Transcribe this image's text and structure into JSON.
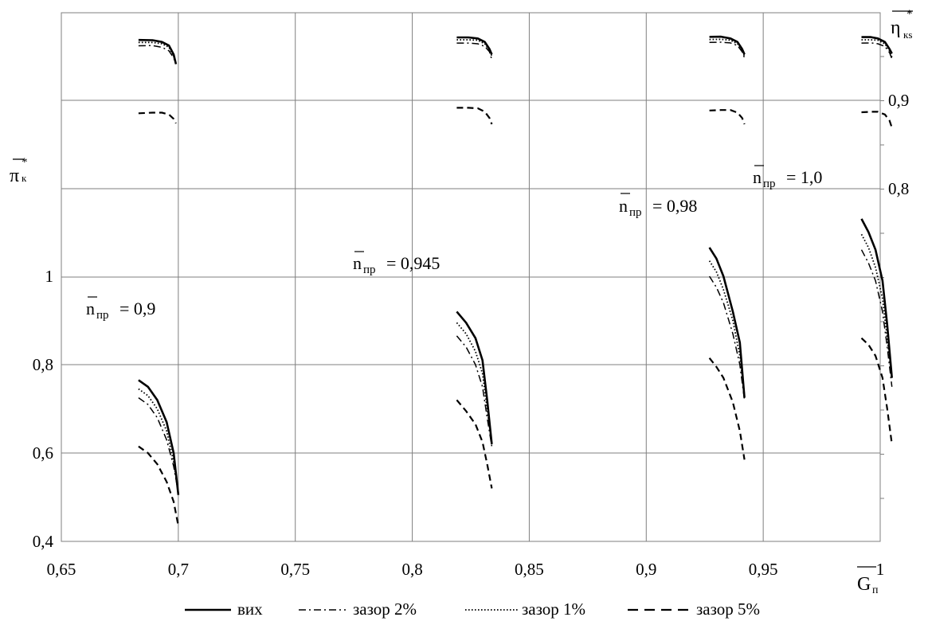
{
  "chart_data": {
    "type": "line",
    "xlabel": "G",
    "xlabel_sub": "п",
    "ylabel": "π",
    "ylabel_sup": "*",
    "ylabel_sub": "к",
    "y2label": "η",
    "y2label_sup": "*",
    "y2label_sub": "кs",
    "xlim": [
      0.65,
      1.0
    ],
    "ylim": [
      0.4,
      1.0
    ],
    "x_ticks": [
      "0,65",
      "0,7",
      "0,75",
      "0,8",
      "0,85",
      "0,9",
      "0,95",
      "1"
    ],
    "y_ticks": [
      "0,4",
      "0,6",
      "0,8",
      "1"
    ],
    "y2_ticks": [
      "0,8",
      "0,9"
    ],
    "grid": true,
    "legend_position": "bottom",
    "annotations": [
      {
        "n": "n",
        "sub": "пр",
        "value": "= 0,9"
      },
      {
        "n": "n",
        "sub": "пр",
        "value": "= 0,945"
      },
      {
        "n": "n",
        "sub": "пр",
        "value": "= 0,98"
      },
      {
        "n": "n",
        "sub": "пр",
        "value": "= 1,0"
      }
    ],
    "series": [
      {
        "name": "вих",
        "style": "solid",
        "pressure": [
          [
            [
              0.683,
              0.765
            ],
            [
              0.687,
              0.75
            ],
            [
              0.691,
              0.72
            ],
            [
              0.695,
              0.67
            ],
            [
              0.698,
              0.6
            ],
            [
              0.7,
              0.505
            ]
          ],
          [
            [
              0.819,
              0.92
            ],
            [
              0.823,
              0.895
            ],
            [
              0.827,
              0.86
            ],
            [
              0.83,
              0.81
            ],
            [
              0.832,
              0.72
            ],
            [
              0.834,
              0.62
            ]
          ],
          [
            [
              0.927,
              1.065
            ],
            [
              0.93,
              1.04
            ],
            [
              0.933,
              1.0
            ],
            [
              0.937,
              0.92
            ],
            [
              0.94,
              0.85
            ],
            [
              0.942,
              0.725
            ]
          ],
          [
            [
              0.992,
              1.13
            ],
            [
              0.995,
              1.1
            ],
            [
              0.998,
              1.06
            ],
            [
              1.001,
              0.99
            ],
            [
              1.003,
              0.89
            ],
            [
              1.005,
              0.77
            ]
          ]
        ],
        "efficiency": [
          [
            [
              0.683,
              0.9683
            ],
            [
              0.689,
              0.968
            ],
            [
              0.693,
              0.966
            ],
            [
              0.696,
              0.962
            ],
            [
              0.698,
              0.952
            ],
            [
              0.699,
              0.941
            ]
          ],
          [
            [
              0.819,
              0.9712
            ],
            [
              0.824,
              0.9712
            ],
            [
              0.828,
              0.97
            ],
            [
              0.831,
              0.966
            ],
            [
              0.833,
              0.958
            ],
            [
              0.834,
              0.952
            ]
          ],
          [
            [
              0.927,
              0.9718
            ],
            [
              0.932,
              0.972
            ],
            [
              0.936,
              0.97
            ],
            [
              0.939,
              0.966
            ],
            [
              0.941,
              0.958
            ],
            [
              0.942,
              0.952
            ]
          ],
          [
            [
              0.992,
              0.9715
            ],
            [
              0.996,
              0.9715
            ],
            [
              0.999,
              0.97
            ],
            [
              1.002,
              0.966
            ],
            [
              1.004,
              0.958
            ],
            [
              1.005,
              0.953
            ]
          ]
        ]
      },
      {
        "name": "зазор 2%",
        "style": "dashdot",
        "pressure": [
          [
            [
              0.683,
              0.725
            ],
            [
              0.687,
              0.71
            ],
            [
              0.691,
              0.68
            ],
            [
              0.695,
              0.63
            ],
            [
              0.698,
              0.57
            ],
            [
              0.7,
              0.51
            ]
          ],
          [
            [
              0.819,
              0.865
            ],
            [
              0.823,
              0.84
            ],
            [
              0.827,
              0.8
            ],
            [
              0.83,
              0.75
            ],
            [
              0.832,
              0.68
            ],
            [
              0.834,
              0.615
            ]
          ],
          [
            [
              0.927,
              1.0
            ],
            [
              0.93,
              0.975
            ],
            [
              0.933,
              0.94
            ],
            [
              0.937,
              0.87
            ],
            [
              0.94,
              0.8
            ],
            [
              0.942,
              0.72
            ]
          ],
          [
            [
              0.992,
              1.06
            ],
            [
              0.995,
              1.03
            ],
            [
              0.998,
              0.99
            ],
            [
              1.001,
              0.92
            ],
            [
              1.003,
              0.84
            ],
            [
              1.005,
              0.75
            ]
          ]
        ],
        "efficiency": [
          [
            [
              0.683,
              0.9617
            ],
            [
              0.689,
              0.962
            ],
            [
              0.693,
              0.96
            ],
            [
              0.696,
              0.956
            ],
            [
              0.698,
              0.948
            ],
            [
              0.699,
              0.941
            ]
          ],
          [
            [
              0.819,
              0.9648
            ],
            [
              0.824,
              0.9648
            ],
            [
              0.828,
              0.964
            ],
            [
              0.831,
              0.961
            ],
            [
              0.833,
              0.955
            ],
            [
              0.834,
              0.946
            ]
          ],
          [
            [
              0.927,
              0.9655
            ],
            [
              0.932,
              0.9658
            ],
            [
              0.936,
              0.965
            ],
            [
              0.939,
              0.962
            ],
            [
              0.941,
              0.955
            ],
            [
              0.942,
              0.948
            ]
          ],
          [
            [
              0.992,
              0.9648
            ],
            [
              0.996,
              0.965
            ],
            [
              0.999,
              0.964
            ],
            [
              1.002,
              0.961
            ],
            [
              1.004,
              0.954
            ],
            [
              1.005,
              0.947
            ]
          ]
        ]
      },
      {
        "name": "зазор 1%",
        "style": "dotted",
        "pressure": [
          [
            [
              0.683,
              0.745
            ],
            [
              0.687,
              0.73
            ],
            [
              0.691,
              0.7
            ],
            [
              0.695,
              0.65
            ],
            [
              0.698,
              0.58
            ],
            [
              0.7,
              0.51
            ]
          ],
          [
            [
              0.819,
              0.895
            ],
            [
              0.823,
              0.87
            ],
            [
              0.827,
              0.83
            ],
            [
              0.83,
              0.78
            ],
            [
              0.832,
              0.7
            ],
            [
              0.834,
              0.62
            ]
          ],
          [
            [
              0.927,
              1.035
            ],
            [
              0.93,
              1.01
            ],
            [
              0.933,
              0.97
            ],
            [
              0.937,
              0.9
            ],
            [
              0.94,
              0.82
            ],
            [
              0.942,
              0.73
            ]
          ],
          [
            [
              0.992,
              1.095
            ],
            [
              0.995,
              1.065
            ],
            [
              0.998,
              1.02
            ],
            [
              1.001,
              0.95
            ],
            [
              1.003,
              0.86
            ],
            [
              1.005,
              0.77
            ]
          ]
        ],
        "efficiency": [
          [
            [
              0.683,
              0.9655
            ],
            [
              0.689,
              0.9655
            ],
            [
              0.693,
              0.964
            ],
            [
              0.696,
              0.96
            ],
            [
              0.698,
              0.95
            ],
            [
              0.699,
              0.941
            ]
          ],
          [
            [
              0.819,
              0.9685
            ],
            [
              0.824,
              0.9685
            ],
            [
              0.828,
              0.968
            ],
            [
              0.831,
              0.964
            ],
            [
              0.833,
              0.957
            ],
            [
              0.834,
              0.95
            ]
          ],
          [
            [
              0.927,
              0.9688
            ],
            [
              0.932,
              0.969
            ],
            [
              0.936,
              0.968
            ],
            [
              0.939,
              0.964
            ],
            [
              0.941,
              0.957
            ],
            [
              0.942,
              0.95
            ]
          ],
          [
            [
              0.992,
              0.9685
            ],
            [
              0.996,
              0.9685
            ],
            [
              0.999,
              0.968
            ],
            [
              1.002,
              0.964
            ],
            [
              1.004,
              0.956
            ],
            [
              1.005,
              0.949
            ]
          ]
        ]
      },
      {
        "name": "зазор 5%",
        "style": "dashed",
        "pressure": [
          [
            [
              0.683,
              0.615
            ],
            [
              0.687,
              0.6
            ],
            [
              0.691,
              0.575
            ],
            [
              0.695,
              0.535
            ],
            [
              0.698,
              0.49
            ],
            [
              0.7,
              0.435
            ]
          ],
          [
            [
              0.819,
              0.72
            ],
            [
              0.823,
              0.695
            ],
            [
              0.827,
              0.665
            ],
            [
              0.83,
              0.625
            ],
            [
              0.832,
              0.575
            ],
            [
              0.834,
              0.52
            ]
          ],
          [
            [
              0.927,
              0.815
            ],
            [
              0.93,
              0.795
            ],
            [
              0.933,
              0.77
            ],
            [
              0.937,
              0.715
            ],
            [
              0.94,
              0.65
            ],
            [
              0.942,
              0.585
            ]
          ],
          [
            [
              0.992,
              0.86
            ],
            [
              0.995,
              0.845
            ],
            [
              0.998,
              0.82
            ],
            [
              1.001,
              0.77
            ],
            [
              1.003,
              0.7
            ],
            [
              1.005,
              0.62
            ]
          ]
        ],
        "efficiency": [
          [
            [
              0.683,
              0.8853
            ],
            [
              0.689,
              0.886
            ],
            [
              0.693,
              0.886
            ],
            [
              0.696,
              0.884
            ],
            [
              0.698,
              0.879
            ],
            [
              0.699,
              0.874
            ]
          ],
          [
            [
              0.819,
              0.8915
            ],
            [
              0.824,
              0.8915
            ],
            [
              0.828,
              0.891
            ],
            [
              0.831,
              0.887
            ],
            [
              0.833,
              0.88
            ],
            [
              0.834,
              0.873
            ]
          ],
          [
            [
              0.927,
              0.8885
            ],
            [
              0.932,
              0.889
            ],
            [
              0.936,
              0.889
            ],
            [
              0.939,
              0.886
            ],
            [
              0.941,
              0.88
            ],
            [
              0.942,
              0.873
            ]
          ],
          [
            [
              0.992,
              0.8865
            ],
            [
              0.996,
              0.887
            ],
            [
              0.999,
              0.887
            ],
            [
              1.002,
              0.884
            ],
            [
              1.004,
              0.877
            ],
            [
              1.005,
              0.869
            ]
          ]
        ]
      }
    ]
  }
}
